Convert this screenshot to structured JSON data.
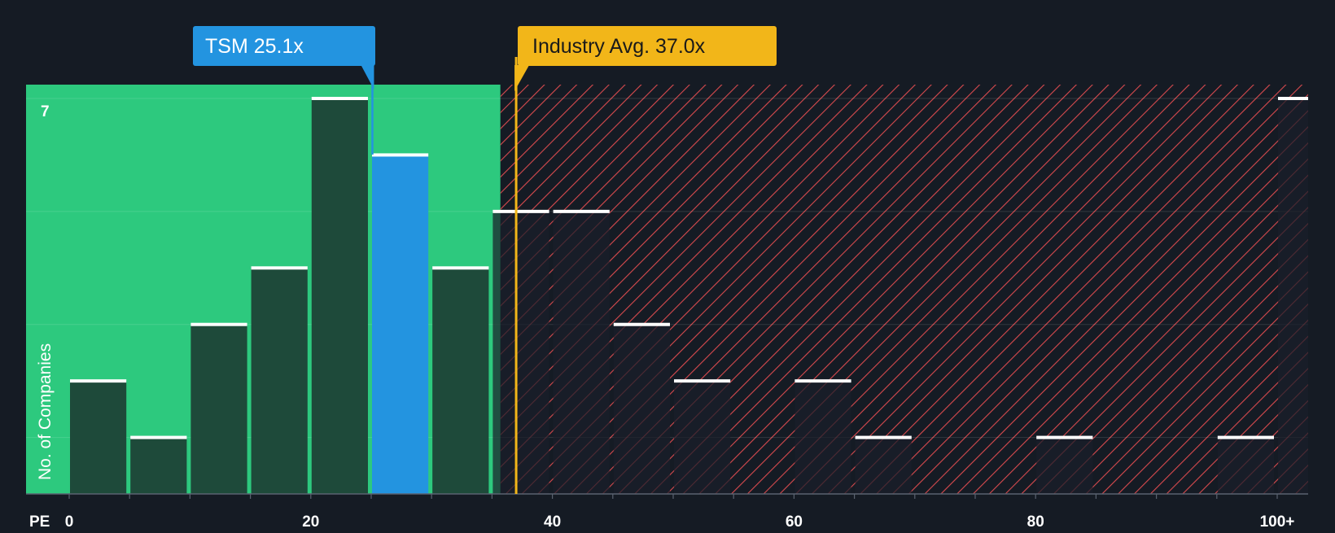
{
  "chart_data": {
    "type": "bar",
    "title": "",
    "xlabel": "PE",
    "ylabel": "No. of Companies",
    "ylim": [
      0,
      7
    ],
    "xlim": [
      0,
      102
    ],
    "bin_width": 5,
    "bins": [
      {
        "x0": 0,
        "value": 2
      },
      {
        "x0": 5,
        "value": 1
      },
      {
        "x0": 10,
        "value": 3
      },
      {
        "x0": 15,
        "value": 4
      },
      {
        "x0": 20,
        "value": 7
      },
      {
        "x0": 25,
        "value": 6,
        "highlight": true
      },
      {
        "x0": 30,
        "value": 4
      },
      {
        "x0": 35,
        "value": 5
      },
      {
        "x0": 40,
        "value": 5
      },
      {
        "x0": 45,
        "value": 3
      },
      {
        "x0": 50,
        "value": 2
      },
      {
        "x0": 60,
        "value": 2
      },
      {
        "x0": 65,
        "value": 1
      },
      {
        "x0": 80,
        "value": 1
      },
      {
        "x0": 95,
        "value": 1
      },
      {
        "x0": 100,
        "value": 7
      }
    ],
    "x_ticks": [
      {
        "value": 0,
        "label": "0"
      },
      {
        "value": 20,
        "label": "20"
      },
      {
        "value": 40,
        "label": "40"
      },
      {
        "value": 60,
        "label": "60"
      },
      {
        "value": 80,
        "label": "80"
      },
      {
        "value": 100,
        "label": "100+"
      }
    ],
    "y_tick_label": "7",
    "company": {
      "name": "TSM",
      "value": 25.1,
      "label": "TSM 25.1x"
    },
    "industry_avg": {
      "value": 37.0,
      "label": "Industry Avg. 37.0x"
    },
    "fair_zone_end": 35.7
  },
  "colors": {
    "background": "#151b24",
    "fair_zone": "#2dc97e",
    "bar_dark": "#1e4a3a",
    "highlight": "#2394e0",
    "hatch": "#d84a4e",
    "industry": "#f2b619",
    "bar_cap": "#ffffff"
  }
}
